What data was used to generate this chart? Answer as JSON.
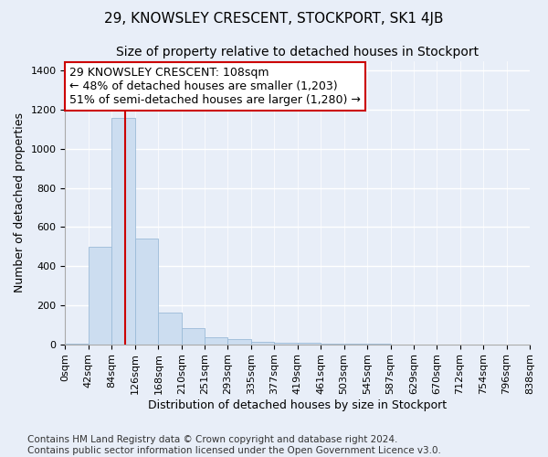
{
  "title": "29, KNOWSLEY CRESCENT, STOCKPORT, SK1 4JB",
  "subtitle": "Size of property relative to detached houses in Stockport",
  "xlabel": "Distribution of detached houses by size in Stockport",
  "ylabel": "Number of detached properties",
  "bin_edges": [
    0,
    42,
    84,
    126,
    168,
    210,
    251,
    293,
    335,
    377,
    419,
    461,
    503,
    545,
    587,
    629,
    670,
    712,
    754,
    796,
    838
  ],
  "bin_labels": [
    "0sqm",
    "42sqm",
    "84sqm",
    "126sqm",
    "168sqm",
    "210sqm",
    "251sqm",
    "293sqm",
    "335sqm",
    "377sqm",
    "419sqm",
    "461sqm",
    "503sqm",
    "545sqm",
    "587sqm",
    "629sqm",
    "670sqm",
    "712sqm",
    "754sqm",
    "796sqm",
    "838sqm"
  ],
  "counts": [
    5,
    500,
    1160,
    540,
    160,
    85,
    35,
    25,
    15,
    8,
    8,
    5,
    2,
    2,
    1,
    1,
    0,
    1,
    0,
    1
  ],
  "bar_color": "#ccddf0",
  "bar_edge_color": "#9bbbd8",
  "red_line_x": 108,
  "annotation_text_line1": "29 KNOWSLEY CRESCENT: 108sqm",
  "annotation_text_line2": "← 48% of detached houses are smaller (1,203)",
  "annotation_text_line3": "51% of semi-detached houses are larger (1,280) →",
  "annotation_box_color": "#ffffff",
  "annotation_border_color": "#cc0000",
  "ylim": [
    0,
    1450
  ],
  "yticks": [
    0,
    200,
    400,
    600,
    800,
    1000,
    1200,
    1400
  ],
  "footer_line1": "Contains HM Land Registry data © Crown copyright and database right 2024.",
  "footer_line2": "Contains public sector information licensed under the Open Government Licence v3.0.",
  "bg_color": "#e8eef8",
  "plot_bg_color": "#e8eef8",
  "grid_color": "#ffffff",
  "title_fontsize": 11,
  "subtitle_fontsize": 10,
  "axis_label_fontsize": 9,
  "tick_fontsize": 8,
  "annotation_fontsize": 9,
  "footer_fontsize": 7.5
}
